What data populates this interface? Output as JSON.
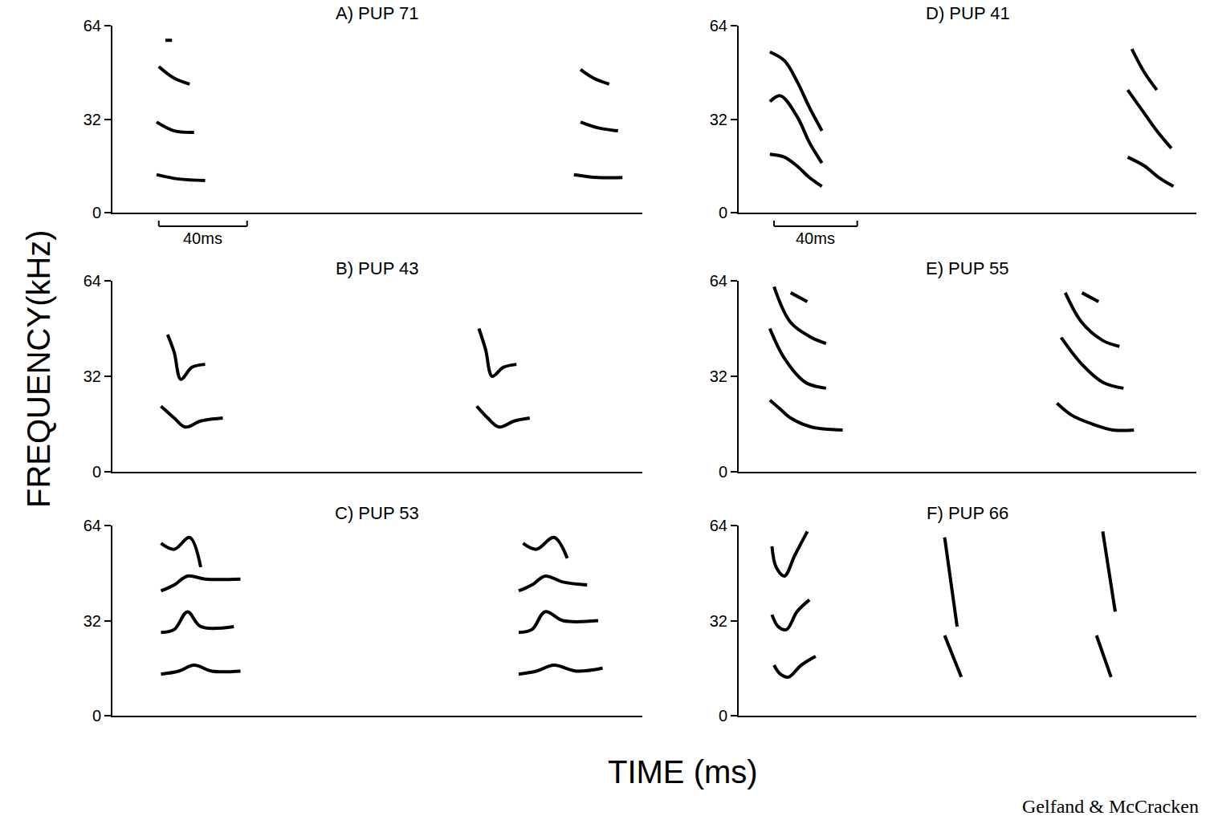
{
  "figure": {
    "ylabel": "FREQUENCY(kHz)",
    "xlabel": "TIME (ms)",
    "credit": "Gelfand & McCracken"
  },
  "chart_data": [
    {
      "type": "line",
      "title": "A) PUP 71",
      "xlim": [
        0,
        240
      ],
      "ylim": [
        0,
        64
      ],
      "yticks": [
        0,
        32,
        64
      ],
      "grid": false,
      "tick_labels": "y",
      "color": "#000000",
      "scale_bar": {
        "x": [
          21,
          61
        ],
        "label": "40ms"
      },
      "series": [
        {
          "x": [
            20,
            30,
            42
          ],
          "values": [
            13,
            11.5,
            11
          ]
        },
        {
          "x": [
            20,
            28,
            37
          ],
          "values": [
            31,
            28,
            27.5
          ]
        },
        {
          "x": [
            21,
            28,
            35
          ],
          "values": [
            50,
            46,
            44
          ]
        },
        {
          "x": [
            24,
            27
          ],
          "values": [
            59,
            59
          ]
        },
        {
          "x": [
            209,
            220,
            231
          ],
          "values": [
            13,
            12,
            12
          ]
        },
        {
          "x": [
            212,
            220,
            229
          ],
          "values": [
            31,
            29,
            28
          ]
        },
        {
          "x": [
            212,
            218,
            225
          ],
          "values": [
            49,
            46,
            44
          ]
        }
      ]
    },
    {
      "type": "line",
      "title": "B) PUP 43",
      "xlim": [
        0,
        240
      ],
      "ylim": [
        0,
        64
      ],
      "yticks": [
        0,
        32,
        64
      ],
      "grid": false,
      "tick_labels": "y",
      "color": "#000000",
      "series": [
        {
          "x": [
            22,
            28,
            33,
            40,
            50
          ],
          "values": [
            22,
            18,
            15,
            17,
            18
          ]
        },
        {
          "x": [
            25,
            28,
            31,
            36,
            42
          ],
          "values": [
            46,
            40,
            31,
            35,
            36
          ]
        },
        {
          "x": [
            165,
            170,
            175,
            182,
            189
          ],
          "values": [
            22,
            18,
            15,
            17,
            18
          ]
        },
        {
          "x": [
            166,
            169,
            172,
            177,
            183
          ],
          "values": [
            48,
            41,
            32,
            35,
            36
          ]
        }
      ]
    },
    {
      "type": "line",
      "title": "C) PUP 53",
      "xlim": [
        0,
        240
      ],
      "ylim": [
        0,
        64
      ],
      "yticks": [
        0,
        32,
        64
      ],
      "grid": false,
      "tick_labels": "y",
      "color": "#000000",
      "series": [
        {
          "x": [
            22,
            30,
            37,
            45,
            58
          ],
          "values": [
            14,
            15,
            17,
            15,
            15
          ]
        },
        {
          "x": [
            22,
            28,
            34,
            40,
            55
          ],
          "values": [
            28,
            29,
            35,
            30,
            30
          ]
        },
        {
          "x": [
            22,
            28,
            34,
            42,
            58
          ],
          "values": [
            42,
            44,
            47,
            46,
            46
          ]
        },
        {
          "x": [
            22,
            28,
            35,
            40
          ],
          "values": [
            58,
            56,
            60,
            50
          ]
        },
        {
          "x": [
            184,
            192,
            200,
            210,
            222
          ],
          "values": [
            14,
            15,
            17,
            15,
            16
          ]
        },
        {
          "x": [
            184,
            190,
            196,
            204,
            220
          ],
          "values": [
            28,
            29,
            35,
            32,
            32
          ]
        },
        {
          "x": [
            184,
            190,
            196,
            204,
            215
          ],
          "values": [
            42,
            44,
            47,
            45,
            44
          ]
        },
        {
          "x": [
            186,
            192,
            200,
            206
          ],
          "values": [
            58,
            56,
            60,
            53
          ]
        }
      ]
    },
    {
      "type": "line",
      "title": "D) PUP 41",
      "xlim": [
        0,
        220
      ],
      "ylim": [
        0,
        64
      ],
      "yticks": [
        0,
        32,
        64
      ],
      "grid": false,
      "tick_labels": "y",
      "color": "#000000",
      "scale_bar": {
        "x": [
          17,
          57
        ],
        "label": "40ms"
      },
      "series": [
        {
          "x": [
            15,
            22,
            28,
            34,
            40
          ],
          "values": [
            20,
            19,
            16,
            12,
            9
          ]
        },
        {
          "x": [
            15,
            20,
            28,
            34,
            40
          ],
          "values": [
            38,
            40,
            33,
            24,
            17
          ]
        },
        {
          "x": [
            15,
            22,
            28,
            34,
            40
          ],
          "values": [
            55,
            52,
            45,
            36,
            28
          ]
        },
        {
          "x": [
            187,
            195,
            202,
            209
          ],
          "values": [
            19,
            16,
            12,
            9
          ]
        },
        {
          "x": [
            187,
            194,
            201,
            208
          ],
          "values": [
            42,
            35,
            28,
            22
          ]
        },
        {
          "x": [
            189,
            195,
            201
          ],
          "values": [
            56,
            48,
            42
          ]
        }
      ]
    },
    {
      "type": "line",
      "title": "E) PUP 55",
      "xlim": [
        0,
        220
      ],
      "ylim": [
        0,
        64
      ],
      "yticks": [
        0,
        32,
        64
      ],
      "grid": false,
      "tick_labels": "y",
      "color": "#000000",
      "series": [
        {
          "x": [
            15,
            20,
            25,
            35,
            50
          ],
          "values": [
            24,
            21,
            18,
            15,
            14
          ]
        },
        {
          "x": [
            15,
            22,
            32,
            42
          ],
          "values": [
            48,
            38,
            30,
            28
          ]
        },
        {
          "x": [
            17,
            25,
            35,
            42
          ],
          "values": [
            62,
            50,
            45,
            43
          ]
        },
        {
          "x": [
            25,
            33
          ],
          "values": [
            60,
            57
          ]
        },
        {
          "x": [
            153,
            160,
            170,
            180,
            190
          ],
          "values": [
            23,
            19,
            16,
            14,
            14
          ]
        },
        {
          "x": [
            155,
            165,
            175,
            185
          ],
          "values": [
            45,
            36,
            30,
            28
          ]
        },
        {
          "x": [
            157,
            165,
            175,
            183
          ],
          "values": [
            60,
            50,
            44,
            42
          ]
        },
        {
          "x": [
            165,
            173
          ],
          "values": [
            60,
            57
          ]
        }
      ]
    },
    {
      "type": "line",
      "title": "F) PUP 66",
      "xlim": [
        0,
        220
      ],
      "ylim": [
        0,
        64
      ],
      "yticks": [
        0,
        32,
        64
      ],
      "grid": false,
      "tick_labels": "y",
      "color": "#000000",
      "series": [
        {
          "x": [
            17,
            20,
            24,
            30,
            37
          ],
          "values": [
            17,
            14,
            13,
            17,
            20
          ]
        },
        {
          "x": [
            16,
            19,
            23,
            28,
            34
          ],
          "values": [
            34,
            30,
            29,
            35,
            39
          ]
        },
        {
          "x": [
            16,
            18,
            22,
            27,
            33
          ],
          "values": [
            57,
            50,
            47,
            54,
            62
          ]
        },
        {
          "x": [
            99,
            105
          ],
          "values": [
            60,
            30
          ]
        },
        {
          "x": [
            99,
            107
          ],
          "values": [
            27,
            13
          ]
        },
        {
          "x": [
            175,
            181
          ],
          "values": [
            62,
            35
          ]
        },
        {
          "x": [
            172,
            179
          ],
          "values": [
            27,
            13
          ]
        }
      ]
    }
  ]
}
